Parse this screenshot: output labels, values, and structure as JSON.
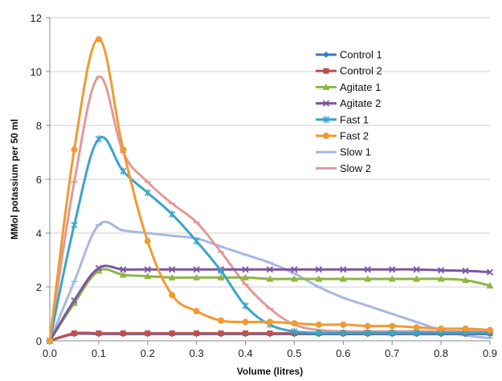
{
  "chart_data": {
    "type": "line",
    "title": "",
    "xlabel": "Volume (litres)",
    "ylabel": "MMol potassium per 50 ml",
    "xlim": [
      0,
      0.9
    ],
    "ylim": [
      0,
      12
    ],
    "x_ticks": [
      "0.0",
      "0.1",
      "0.2",
      "0.3",
      "0.4",
      "0.5",
      "0.6",
      "0.7",
      "0.8",
      "0.9"
    ],
    "y_ticks": [
      "0",
      "2",
      "4",
      "6",
      "8",
      "10",
      "12"
    ],
    "grid": "horizontal",
    "legend_position": "right",
    "series": [
      {
        "name": "Control 1",
        "color": "#3a7bbf",
        "marker": "diamond",
        "points": [
          [
            0,
            0
          ],
          [
            0.05,
            0.25
          ],
          [
            0.1,
            0.25
          ],
          [
            0.15,
            0.25
          ],
          [
            0.2,
            0.25
          ],
          [
            0.25,
            0.25
          ],
          [
            0.3,
            0.25
          ],
          [
            0.35,
            0.25
          ],
          [
            0.4,
            0.25
          ],
          [
            0.45,
            0.25
          ],
          [
            0.5,
            0.25
          ],
          [
            0.55,
            0.25
          ],
          [
            0.6,
            0.25
          ],
          [
            0.65,
            0.25
          ],
          [
            0.7,
            0.25
          ],
          [
            0.75,
            0.25
          ],
          [
            0.8,
            0.25
          ],
          [
            0.85,
            0.25
          ],
          [
            0.9,
            0.25
          ]
        ]
      },
      {
        "name": "Control 2",
        "color": "#c0504d",
        "marker": "square",
        "points": [
          [
            0,
            0
          ],
          [
            0.05,
            0.28
          ],
          [
            0.1,
            0.28
          ],
          [
            0.15,
            0.28
          ],
          [
            0.2,
            0.28
          ],
          [
            0.25,
            0.28
          ],
          [
            0.3,
            0.28
          ],
          [
            0.35,
            0.28
          ],
          [
            0.4,
            0.28
          ],
          [
            0.45,
            0.28
          ],
          [
            0.5,
            0.28
          ],
          [
            0.55,
            0.28
          ],
          [
            0.6,
            0.28
          ],
          [
            0.65,
            0.28
          ],
          [
            0.7,
            0.28
          ],
          [
            0.75,
            0.28
          ],
          [
            0.8,
            0.28
          ],
          [
            0.85,
            0.28
          ],
          [
            0.9,
            0.28
          ]
        ]
      },
      {
        "name": "Agitate 1",
        "color": "#8db545",
        "marker": "triangle",
        "points": [
          [
            0,
            0
          ],
          [
            0.05,
            1.4
          ],
          [
            0.1,
            2.6
          ],
          [
            0.15,
            2.45
          ],
          [
            0.2,
            2.4
          ],
          [
            0.25,
            2.35
          ],
          [
            0.3,
            2.35
          ],
          [
            0.35,
            2.35
          ],
          [
            0.4,
            2.35
          ],
          [
            0.45,
            2.3
          ],
          [
            0.5,
            2.3
          ],
          [
            0.55,
            2.3
          ],
          [
            0.6,
            2.3
          ],
          [
            0.65,
            2.3
          ],
          [
            0.7,
            2.3
          ],
          [
            0.75,
            2.3
          ],
          [
            0.8,
            2.3
          ],
          [
            0.85,
            2.25
          ],
          [
            0.9,
            2.05
          ]
        ]
      },
      {
        "name": "Agitate 2",
        "color": "#7b56a3",
        "marker": "x",
        "points": [
          [
            0,
            0
          ],
          [
            0.05,
            1.5
          ],
          [
            0.1,
            2.7
          ],
          [
            0.15,
            2.65
          ],
          [
            0.2,
            2.65
          ],
          [
            0.25,
            2.65
          ],
          [
            0.3,
            2.65
          ],
          [
            0.35,
            2.65
          ],
          [
            0.4,
            2.65
          ],
          [
            0.45,
            2.65
          ],
          [
            0.5,
            2.65
          ],
          [
            0.55,
            2.65
          ],
          [
            0.6,
            2.65
          ],
          [
            0.65,
            2.65
          ],
          [
            0.7,
            2.65
          ],
          [
            0.75,
            2.65
          ],
          [
            0.8,
            2.62
          ],
          [
            0.85,
            2.6
          ],
          [
            0.9,
            2.55
          ]
        ]
      },
      {
        "name": "Fast 1",
        "color": "#3aa5c8",
        "marker": "star",
        "points": [
          [
            0,
            0
          ],
          [
            0.05,
            4.3
          ],
          [
            0.1,
            7.5
          ],
          [
            0.15,
            6.3
          ],
          [
            0.2,
            5.5
          ],
          [
            0.25,
            4.7
          ],
          [
            0.3,
            3.7
          ],
          [
            0.35,
            2.6
          ],
          [
            0.4,
            1.3
          ],
          [
            0.45,
            0.6
          ],
          [
            0.5,
            0.35
          ],
          [
            0.55,
            0.3
          ],
          [
            0.6,
            0.3
          ],
          [
            0.65,
            0.3
          ],
          [
            0.7,
            0.3
          ],
          [
            0.75,
            0.3
          ],
          [
            0.8,
            0.3
          ],
          [
            0.85,
            0.3
          ],
          [
            0.9,
            0.3
          ]
        ]
      },
      {
        "name": "Fast 2",
        "color": "#f19a32",
        "marker": "circle",
        "points": [
          [
            0,
            0
          ],
          [
            0.05,
            7.1
          ],
          [
            0.1,
            11.2
          ],
          [
            0.15,
            7.1
          ],
          [
            0.2,
            3.7
          ],
          [
            0.25,
            1.7
          ],
          [
            0.3,
            1.1
          ],
          [
            0.35,
            0.75
          ],
          [
            0.4,
            0.7
          ],
          [
            0.45,
            0.7
          ],
          [
            0.5,
            0.65
          ],
          [
            0.55,
            0.6
          ],
          [
            0.6,
            0.6
          ],
          [
            0.65,
            0.55
          ],
          [
            0.7,
            0.55
          ],
          [
            0.75,
            0.5
          ],
          [
            0.8,
            0.45
          ],
          [
            0.85,
            0.45
          ],
          [
            0.9,
            0.4
          ]
        ]
      },
      {
        "name": "Slow 1",
        "color": "#a7b9e0",
        "marker": "dash",
        "points": [
          [
            0,
            0
          ],
          [
            0.05,
            2.2
          ],
          [
            0.1,
            4.3
          ],
          [
            0.15,
            4.1
          ],
          [
            0.2,
            4.0
          ],
          [
            0.25,
            3.9
          ],
          [
            0.3,
            3.8
          ],
          [
            0.35,
            3.5
          ],
          [
            0.4,
            3.2
          ],
          [
            0.45,
            2.9
          ],
          [
            0.5,
            2.5
          ],
          [
            0.55,
            2.0
          ],
          [
            0.6,
            1.6
          ],
          [
            0.65,
            1.3
          ],
          [
            0.7,
            1.0
          ],
          [
            0.75,
            0.7
          ],
          [
            0.8,
            0.4
          ],
          [
            0.85,
            0.2
          ],
          [
            0.9,
            0.1
          ]
        ]
      },
      {
        "name": "Slow 2",
        "color": "#e09a9a",
        "marker": "dash",
        "points": [
          [
            0,
            0
          ],
          [
            0.05,
            5.9
          ],
          [
            0.1,
            9.8
          ],
          [
            0.15,
            7.0
          ],
          [
            0.2,
            5.9
          ],
          [
            0.25,
            5.1
          ],
          [
            0.3,
            4.4
          ],
          [
            0.35,
            3.3
          ],
          [
            0.4,
            2.1
          ],
          [
            0.45,
            1.2
          ],
          [
            0.5,
            0.6
          ],
          [
            0.55,
            0.4
          ],
          [
            0.6,
            0.35
          ],
          [
            0.65,
            0.35
          ],
          [
            0.7,
            0.35
          ],
          [
            0.75,
            0.35
          ],
          [
            0.8,
            0.35
          ],
          [
            0.85,
            0.35
          ],
          [
            0.9,
            0.35
          ]
        ]
      }
    ]
  }
}
